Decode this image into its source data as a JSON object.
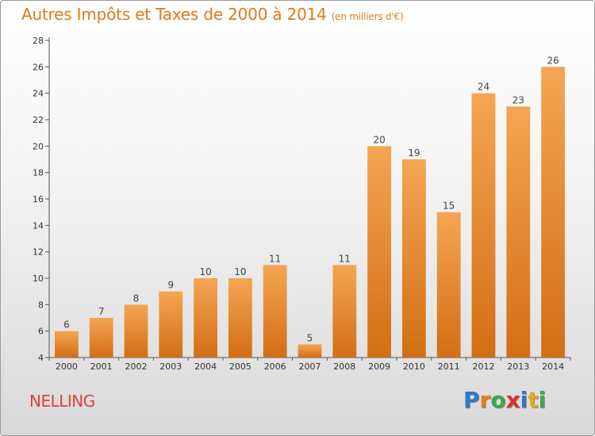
{
  "header": {
    "title": "Autres Impôts et Taxes de 2000 à 2014",
    "subtitle": "(en milliers d'€)"
  },
  "footer": {
    "commune": "NELLING",
    "logo_letters": [
      "P",
      "r",
      "o",
      "x",
      "i",
      "t",
      "i"
    ],
    "logo_colors": [
      "#2f78c4",
      "#e8791c",
      "#3aa84a",
      "#d8342c",
      "#2f78c4",
      "#e8a81c",
      "#3aa84a"
    ]
  },
  "chart_data": {
    "type": "bar",
    "title": "Autres Impôts et Taxes de 2000 à 2014",
    "subtitle": "(en milliers d'€)",
    "xlabel": "",
    "ylabel": "",
    "categories": [
      "2000",
      "2001",
      "2002",
      "2003",
      "2004",
      "2005",
      "2006",
      "2007",
      "2008",
      "2009",
      "2010",
      "2011",
      "2012",
      "2013",
      "2014"
    ],
    "values": [
      6,
      7,
      8,
      9,
      10,
      10,
      11,
      5,
      11,
      20,
      19,
      15,
      24,
      23,
      26
    ],
    "ylim": [
      4,
      28
    ],
    "yticks": [
      4,
      6,
      8,
      10,
      12,
      14,
      16,
      18,
      20,
      22,
      24,
      26,
      28
    ],
    "grid": false,
    "legend": "none",
    "bar_color_top": "#f5a553",
    "bar_color_bottom": "#d26e14"
  }
}
